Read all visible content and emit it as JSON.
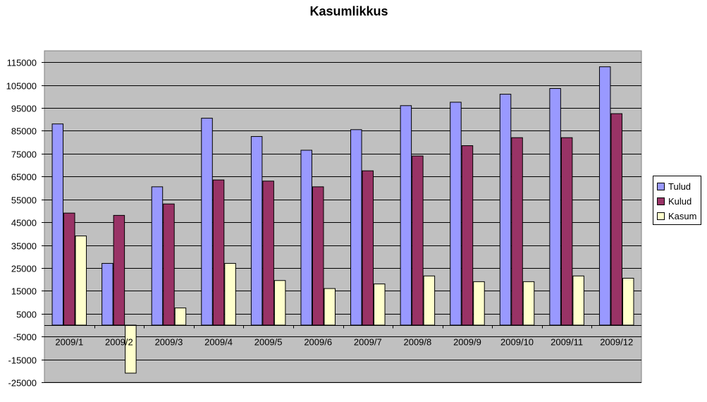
{
  "chart_data": {
    "type": "bar",
    "title": "Kasumlikkus",
    "xlabel": "",
    "ylabel": "",
    "categories": [
      "2009/1",
      "2009/2",
      "2009/3",
      "2009/4",
      "2009/5",
      "2009/6",
      "2009/7",
      "2009/8",
      "2009/9",
      "2009/10",
      "2009/11",
      "2009/12"
    ],
    "series": [
      {
        "name": "Tulud",
        "color": "#9999FF",
        "values": [
          88000,
          27000,
          60500,
          90500,
          82500,
          76500,
          85500,
          96000,
          97500,
          101000,
          103500,
          113000
        ]
      },
      {
        "name": "Kulud",
        "color": "#993366",
        "values": [
          49000,
          48000,
          53000,
          63500,
          63000,
          60500,
          67500,
          74000,
          78500,
          82000,
          82000,
          92500
        ]
      },
      {
        "name": "Kasum",
        "color": "#FFFFCC",
        "values": [
          39000,
          -21000,
          7500,
          27000,
          19500,
          16000,
          18000,
          21500,
          19000,
          19000,
          21500,
          20500
        ]
      }
    ],
    "ylim": [
      -25000,
      120000
    ],
    "yticks": [
      115000,
      105000,
      95000,
      85000,
      75000,
      65000,
      55000,
      45000,
      35000,
      25000,
      15000,
      5000,
      -5000,
      -15000,
      -25000
    ],
    "grid": true,
    "legend_position": "right",
    "plot_background": "#C0C0C0"
  }
}
